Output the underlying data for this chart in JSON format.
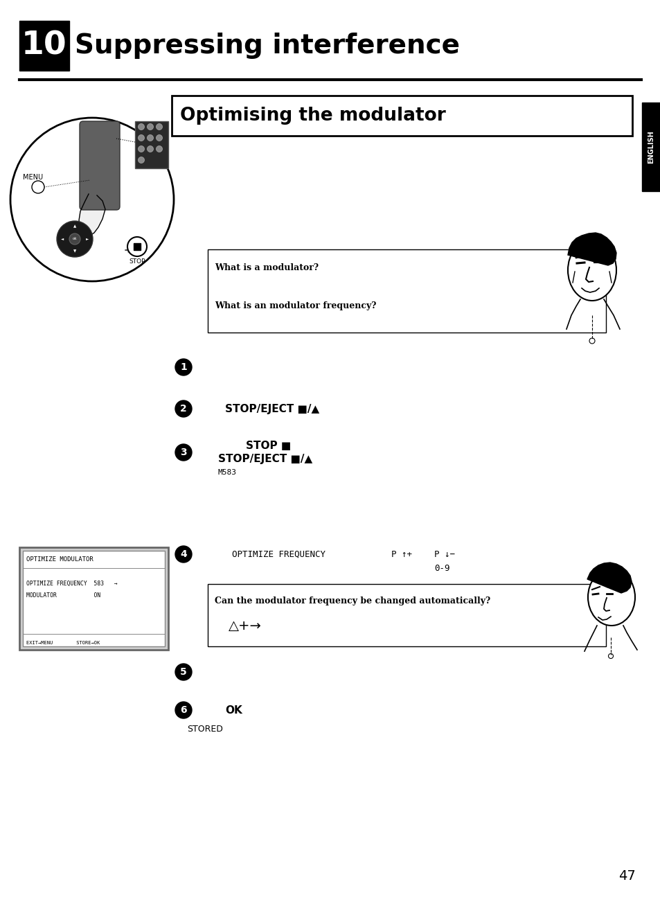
{
  "title_number": "10",
  "title_text": "Suppressing interference",
  "subtitle": "Optimising the modulator",
  "bg_color": "#ffffff",
  "page_number": "47",
  "english_sidebar": "ENGLISH",
  "step2_text": "STOP/EJECT ■/▲",
  "step3_line1": "STOP ■",
  "step3_line2": "STOP/EJECT ■/▲",
  "step3_line3": "M583",
  "step4_text": "OPTIMIZE FREQUENCY",
  "step4_right1": "P ↑+",
  "step4_right2": "P ↓−",
  "step4_right3": "0-9",
  "question1": "What is a modulator?",
  "question2": "What is an modulator frequency?",
  "question3": "Can the modulator frequency be changed automatically?",
  "question3_sub": "△+→",
  "screen_title": "OPTIMIZE MODULATOR",
  "screen_line1": "OPTIMIZE FREQUENCY  583   →",
  "screen_line2": "MODULATOR           ON",
  "screen_bottom": "EXIT→MENU        STORE→OK",
  "step6_ok": "OK",
  "step6_stored": "STORED",
  "menu_label": "MENU",
  "stop_label": "STOP"
}
